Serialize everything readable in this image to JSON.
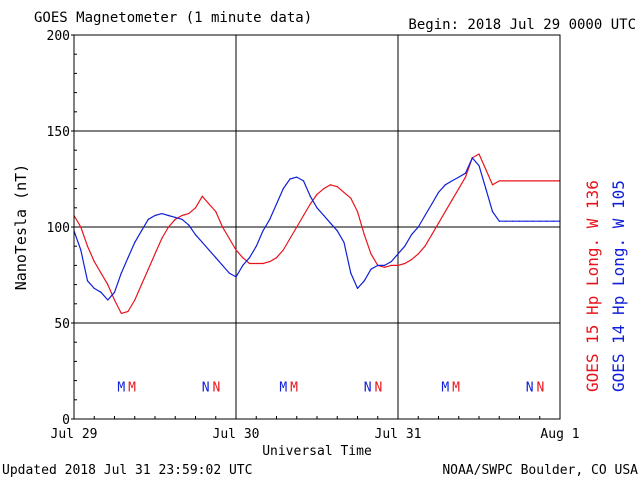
{
  "header": {
    "title": "GOES Magnetometer (1 minute data)",
    "begin": "Begin:  2018 Jul 29 0000 UTC"
  },
  "footer": {
    "updated": "Updated 2018 Jul 31 23:59:02 UTC",
    "source": "NOAA/SWPC Boulder, CO USA"
  },
  "colors": {
    "goes15": "#e8141c",
    "goes14": "#1020d8",
    "axis": "#000000"
  },
  "chart_data": {
    "type": "line",
    "title": "GOES Magnetometer (1 minute data)",
    "xlabel": "Universal Time",
    "ylabel": "NanoTesla (nT)",
    "ylim": [
      0,
      200
    ],
    "xlim": [
      0,
      72
    ],
    "x_unit": "hours since 2018 Jul 29 0000 UTC",
    "yticks": [
      0,
      50,
      100,
      150,
      200
    ],
    "xticks": [
      {
        "x": 0,
        "label": "Jul 29"
      },
      {
        "x": 24,
        "label": "Jul 30"
      },
      {
        "x": 48,
        "label": "Jul 31"
      },
      {
        "x": 72,
        "label": "Aug 1"
      }
    ],
    "grid": true,
    "legend_position": "right (vertical)",
    "series": [
      {
        "name": "GOES 15 Hp",
        "legend_label": "GOES 15 Hp  Long. W 136",
        "color": "#e8141c",
        "x": [
          0,
          1,
          2,
          3,
          4,
          5,
          6,
          7,
          8,
          9,
          10,
          11,
          12,
          13,
          14,
          15,
          16,
          17,
          18,
          19,
          20,
          21,
          22,
          23,
          24,
          25,
          26,
          27,
          28,
          29,
          30,
          31,
          32,
          33,
          34,
          35,
          36,
          37,
          38,
          39,
          40,
          41,
          42,
          43,
          44,
          45,
          46,
          47,
          48,
          49,
          50,
          51,
          52,
          53,
          54,
          55,
          56,
          57,
          58,
          59,
          60,
          61,
          62,
          63,
          64,
          65,
          66,
          67,
          68,
          69,
          70,
          71,
          72
        ],
        "y": [
          106,
          100,
          90,
          82,
          76,
          70,
          62,
          55,
          56,
          62,
          70,
          78,
          86,
          94,
          100,
          104,
          106,
          107,
          110,
          116,
          112,
          108,
          100,
          94,
          88,
          84,
          81,
          81,
          81,
          82,
          84,
          88,
          94,
          100,
          106,
          112,
          117,
          120,
          122,
          121,
          118,
          115,
          108,
          96,
          86,
          80,
          79,
          80,
          80,
          81,
          83,
          86,
          90,
          96,
          102,
          108,
          114,
          120,
          126,
          136,
          138,
          130,
          122,
          124,
          124,
          124,
          124,
          124,
          124,
          124,
          124,
          124,
          124
        ]
      },
      {
        "name": "GOES 14 Hp",
        "legend_label": "GOES 14 Hp  Long. W 105",
        "color": "#1020d8",
        "x": [
          0,
          1,
          2,
          3,
          4,
          5,
          6,
          7,
          8,
          9,
          10,
          11,
          12,
          13,
          14,
          15,
          16,
          17,
          18,
          19,
          20,
          21,
          22,
          23,
          24,
          25,
          26,
          27,
          28,
          29,
          30,
          31,
          32,
          33,
          34,
          35,
          36,
          37,
          38,
          39,
          40,
          41,
          42,
          43,
          44,
          45,
          46,
          47,
          48,
          49,
          50,
          51,
          52,
          53,
          54,
          55,
          56,
          57,
          58,
          59,
          60,
          61,
          62,
          63,
          64,
          65,
          66,
          67,
          68,
          69,
          70,
          71,
          72
        ],
        "y": [
          98,
          88,
          72,
          68,
          66,
          62,
          66,
          76,
          84,
          92,
          98,
          104,
          106,
          107,
          106,
          105,
          104,
          101,
          96,
          92,
          88,
          84,
          80,
          76,
          74,
          80,
          84,
          90,
          98,
          104,
          112,
          120,
          125,
          126,
          124,
          116,
          110,
          106,
          102,
          98,
          92,
          76,
          68,
          72,
          78,
          80,
          80,
          82,
          86,
          90,
          96,
          100,
          106,
          112,
          118,
          122,
          124,
          126,
          128,
          136,
          132,
          120,
          108,
          103,
          103,
          103,
          103,
          103,
          103,
          103,
          103,
          103,
          103
        ]
      }
    ],
    "markers": [
      {
        "letter": "M",
        "color": "#1020d8",
        "x": 7.0,
        "y": 17
      },
      {
        "letter": "M",
        "color": "#e8141c",
        "x": 8.6,
        "y": 17
      },
      {
        "letter": "N",
        "color": "#1020d8",
        "x": 19.5,
        "y": 17
      },
      {
        "letter": "N",
        "color": "#e8141c",
        "x": 21.1,
        "y": 17
      },
      {
        "letter": "M",
        "color": "#1020d8",
        "x": 31.0,
        "y": 17
      },
      {
        "letter": "M",
        "color": "#e8141c",
        "x": 32.6,
        "y": 17
      },
      {
        "letter": "N",
        "color": "#1020d8",
        "x": 43.5,
        "y": 17
      },
      {
        "letter": "N",
        "color": "#e8141c",
        "x": 45.1,
        "y": 17
      },
      {
        "letter": "M",
        "color": "#1020d8",
        "x": 55.0,
        "y": 17
      },
      {
        "letter": "M",
        "color": "#e8141c",
        "x": 56.6,
        "y": 17
      },
      {
        "letter": "N",
        "color": "#1020d8",
        "x": 67.5,
        "y": 17
      },
      {
        "letter": "N",
        "color": "#e8141c",
        "x": 69.1,
        "y": 17
      }
    ]
  }
}
